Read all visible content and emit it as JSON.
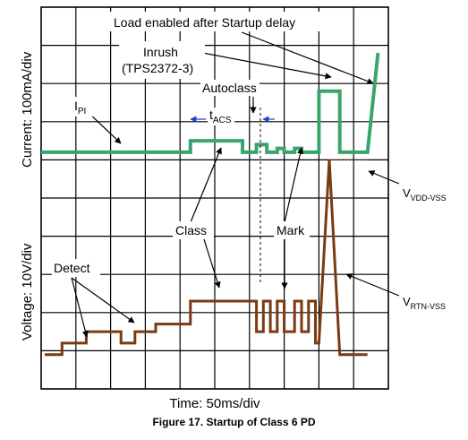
{
  "caption": "Figure 17.  Startup of Class 6 PD",
  "chart_data": {
    "type": "line",
    "title": "",
    "xlabel": "Time: 50ms/div",
    "ylabel_current": "Current: 100mA/div",
    "ylabel_voltage": "Voltage: 10V/div",
    "grid": true,
    "x_divisions": 10,
    "y_divisions": 10,
    "annotations": {
      "load": "Load enabled after Startup delay",
      "inrush_1": "Inrush",
      "inrush_2": "(TPS2372-3)",
      "autoclass": "Autoclass",
      "ipi_main": "I",
      "ipi_sub": "PI",
      "tacs_main": "t",
      "tacs_sub": "ACS",
      "class": "Class",
      "mark": "Mark",
      "detect": "Detect",
      "vdd_main": "V",
      "vdd_sub": "VDD-VSS",
      "vrtn_main": "V",
      "vrtn_sub": "RTN-VSS"
    },
    "series": [
      {
        "name": "I_PI",
        "color": "#3aa56b",
        "points": [
          [
            0,
            6.2
          ],
          [
            4.3,
            6.2
          ],
          [
            4.3,
            6.5
          ],
          [
            5.8,
            6.5
          ],
          [
            5.8,
            6.2
          ],
          [
            6.2,
            6.2
          ],
          [
            6.2,
            6.4
          ],
          [
            6.5,
            6.4
          ],
          [
            6.5,
            6.2
          ],
          [
            6.8,
            6.2
          ],
          [
            6.8,
            6.3
          ],
          [
            7.0,
            6.3
          ],
          [
            7.0,
            6.2
          ],
          [
            7.3,
            6.2
          ],
          [
            7.3,
            6.3
          ],
          [
            7.5,
            6.3
          ],
          [
            7.5,
            6.2
          ],
          [
            8.0,
            6.2
          ],
          [
            8.0,
            7.8
          ],
          [
            8.6,
            7.8
          ],
          [
            8.6,
            6.2
          ],
          [
            9.4,
            6.2
          ],
          [
            9.7,
            8.8
          ]
        ]
      },
      {
        "name": "V_RTN-VSS",
        "color": "#7a3b12",
        "points": [
          [
            0.1,
            0.9
          ],
          [
            0.6,
            0.9
          ],
          [
            0.6,
            1.2
          ],
          [
            1.3,
            1.2
          ],
          [
            1.3,
            1.5
          ],
          [
            2.3,
            1.5
          ],
          [
            2.3,
            1.2
          ],
          [
            2.7,
            1.2
          ],
          [
            2.7,
            1.5
          ],
          [
            3.3,
            1.5
          ],
          [
            3.3,
            1.7
          ],
          [
            4.3,
            1.7
          ],
          [
            4.3,
            2.3
          ],
          [
            6.2,
            2.3
          ],
          [
            6.2,
            1.5
          ],
          [
            6.4,
            1.5
          ],
          [
            6.4,
            2.3
          ],
          [
            6.6,
            2.3
          ],
          [
            6.6,
            1.5
          ],
          [
            6.8,
            1.5
          ],
          [
            6.8,
            2.3
          ],
          [
            7.0,
            2.3
          ],
          [
            7.0,
            1.5
          ],
          [
            7.3,
            1.5
          ],
          [
            7.3,
            2.3
          ],
          [
            7.5,
            2.3
          ],
          [
            7.5,
            1.5
          ],
          [
            7.7,
            1.5
          ],
          [
            7.7,
            2.3
          ],
          [
            7.9,
            2.3
          ],
          [
            7.9,
            1.2
          ],
          [
            8.0,
            1.2
          ],
          [
            8.3,
            6.0
          ],
          [
            8.6,
            0.9
          ],
          [
            9.4,
            0.9
          ]
        ]
      },
      {
        "name": "V_VDD-VSS",
        "color": "#7a3b12",
        "style": "dotted",
        "points": [
          [
            8.3,
            6.0
          ],
          [
            9.4,
            6.0
          ]
        ]
      }
    ]
  }
}
